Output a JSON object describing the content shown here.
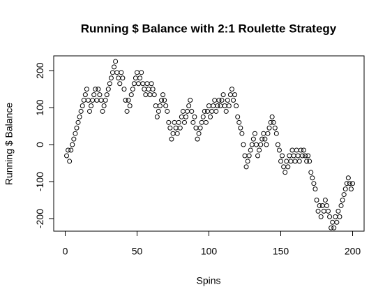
{
  "chart_data": {
    "type": "scatter",
    "title": "Running $ Balance with 2:1 Roulette Strategy",
    "x_label": "Spins",
    "y_label": "Running $ Balance",
    "xlim": [
      -8,
      208
    ],
    "ylim": [
      -234,
      240
    ],
    "xticks": [
      0,
      50,
      100,
      150,
      200
    ],
    "yticks": [
      -200,
      -100,
      0,
      100,
      200
    ],
    "color": "#000000",
    "x": [
      1,
      2,
      3,
      4,
      5,
      6,
      7,
      8,
      9,
      10,
      11,
      12,
      13,
      14,
      15,
      16,
      17,
      18,
      19,
      20,
      21,
      22,
      23,
      24,
      25,
      26,
      27,
      28,
      29,
      30,
      31,
      32,
      33,
      34,
      35,
      36,
      37,
      38,
      39,
      40,
      41,
      42,
      43,
      44,
      45,
      46,
      47,
      48,
      49,
      50,
      51,
      52,
      53,
      54,
      55,
      56,
      57,
      58,
      59,
      60,
      61,
      62,
      63,
      64,
      65,
      66,
      67,
      68,
      69,
      70,
      71,
      72,
      73,
      74,
      75,
      76,
      77,
      78,
      79,
      80,
      81,
      82,
      83,
      84,
      85,
      86,
      87,
      88,
      89,
      90,
      91,
      92,
      93,
      94,
      95,
      96,
      97,
      98,
      99,
      100,
      101,
      102,
      103,
      104,
      105,
      106,
      107,
      108,
      109,
      110,
      111,
      112,
      113,
      114,
      115,
      116,
      117,
      118,
      119,
      120,
      121,
      122,
      123,
      124,
      125,
      126,
      127,
      128,
      129,
      130,
      131,
      132,
      133,
      134,
      135,
      136,
      137,
      138,
      139,
      140,
      141,
      142,
      143,
      144,
      145,
      146,
      147,
      148,
      149,
      150,
      151,
      152,
      153,
      154,
      155,
      156,
      157,
      158,
      159,
      160,
      161,
      162,
      163,
      164,
      165,
      166,
      167,
      168,
      169,
      170,
      171,
      172,
      173,
      174,
      175,
      176,
      177,
      178,
      179,
      180,
      181,
      182,
      183,
      184,
      185,
      186,
      187,
      188,
      189,
      190,
      191,
      192,
      193,
      194,
      195,
      196,
      197,
      198,
      199,
      200
    ],
    "values": [
      -30,
      -15,
      -45,
      -15,
      0,
      15,
      30,
      45,
      60,
      75,
      90,
      105,
      120,
      135,
      150,
      120,
      90,
      105,
      120,
      135,
      150,
      120,
      150,
      135,
      120,
      90,
      105,
      120,
      135,
      150,
      165,
      180,
      195,
      210,
      225,
      195,
      180,
      165,
      195,
      180,
      150,
      120,
      90,
      120,
      105,
      135,
      150,
      165,
      180,
      195,
      165,
      180,
      195,
      165,
      150,
      135,
      165,
      150,
      135,
      165,
      150,
      135,
      105,
      75,
      90,
      105,
      120,
      135,
      120,
      105,
      90,
      60,
      45,
      15,
      30,
      60,
      45,
      30,
      60,
      45,
      75,
      90,
      60,
      75,
      90,
      105,
      120,
      90,
      60,
      75,
      45,
      15,
      30,
      45,
      60,
      75,
      90,
      60,
      90,
      105,
      75,
      90,
      105,
      120,
      90,
      105,
      120,
      105,
      120,
      135,
      105,
      90,
      120,
      105,
      135,
      150,
      120,
      135,
      105,
      75,
      60,
      45,
      30,
      0,
      -30,
      -60,
      -45,
      -30,
      -15,
      0,
      15,
      30,
      0,
      -30,
      -15,
      0,
      15,
      30,
      15,
      0,
      30,
      45,
      60,
      75,
      60,
      45,
      30,
      0,
      -15,
      -45,
      -30,
      -60,
      -75,
      -45,
      -60,
      -30,
      -45,
      -15,
      -30,
      -45,
      -15,
      -30,
      -45,
      -15,
      -30,
      -15,
      -30,
      -45,
      -30,
      -45,
      -75,
      -90,
      -105,
      -120,
      -150,
      -180,
      -165,
      -195,
      -165,
      -180,
      -150,
      -165,
      -180,
      -195,
      -225,
      -210,
      -225,
      -195,
      -210,
      -180,
      -195,
      -165,
      -150,
      -135,
      -120,
      -105,
      -90,
      -105,
      -120,
      -105
    ]
  }
}
